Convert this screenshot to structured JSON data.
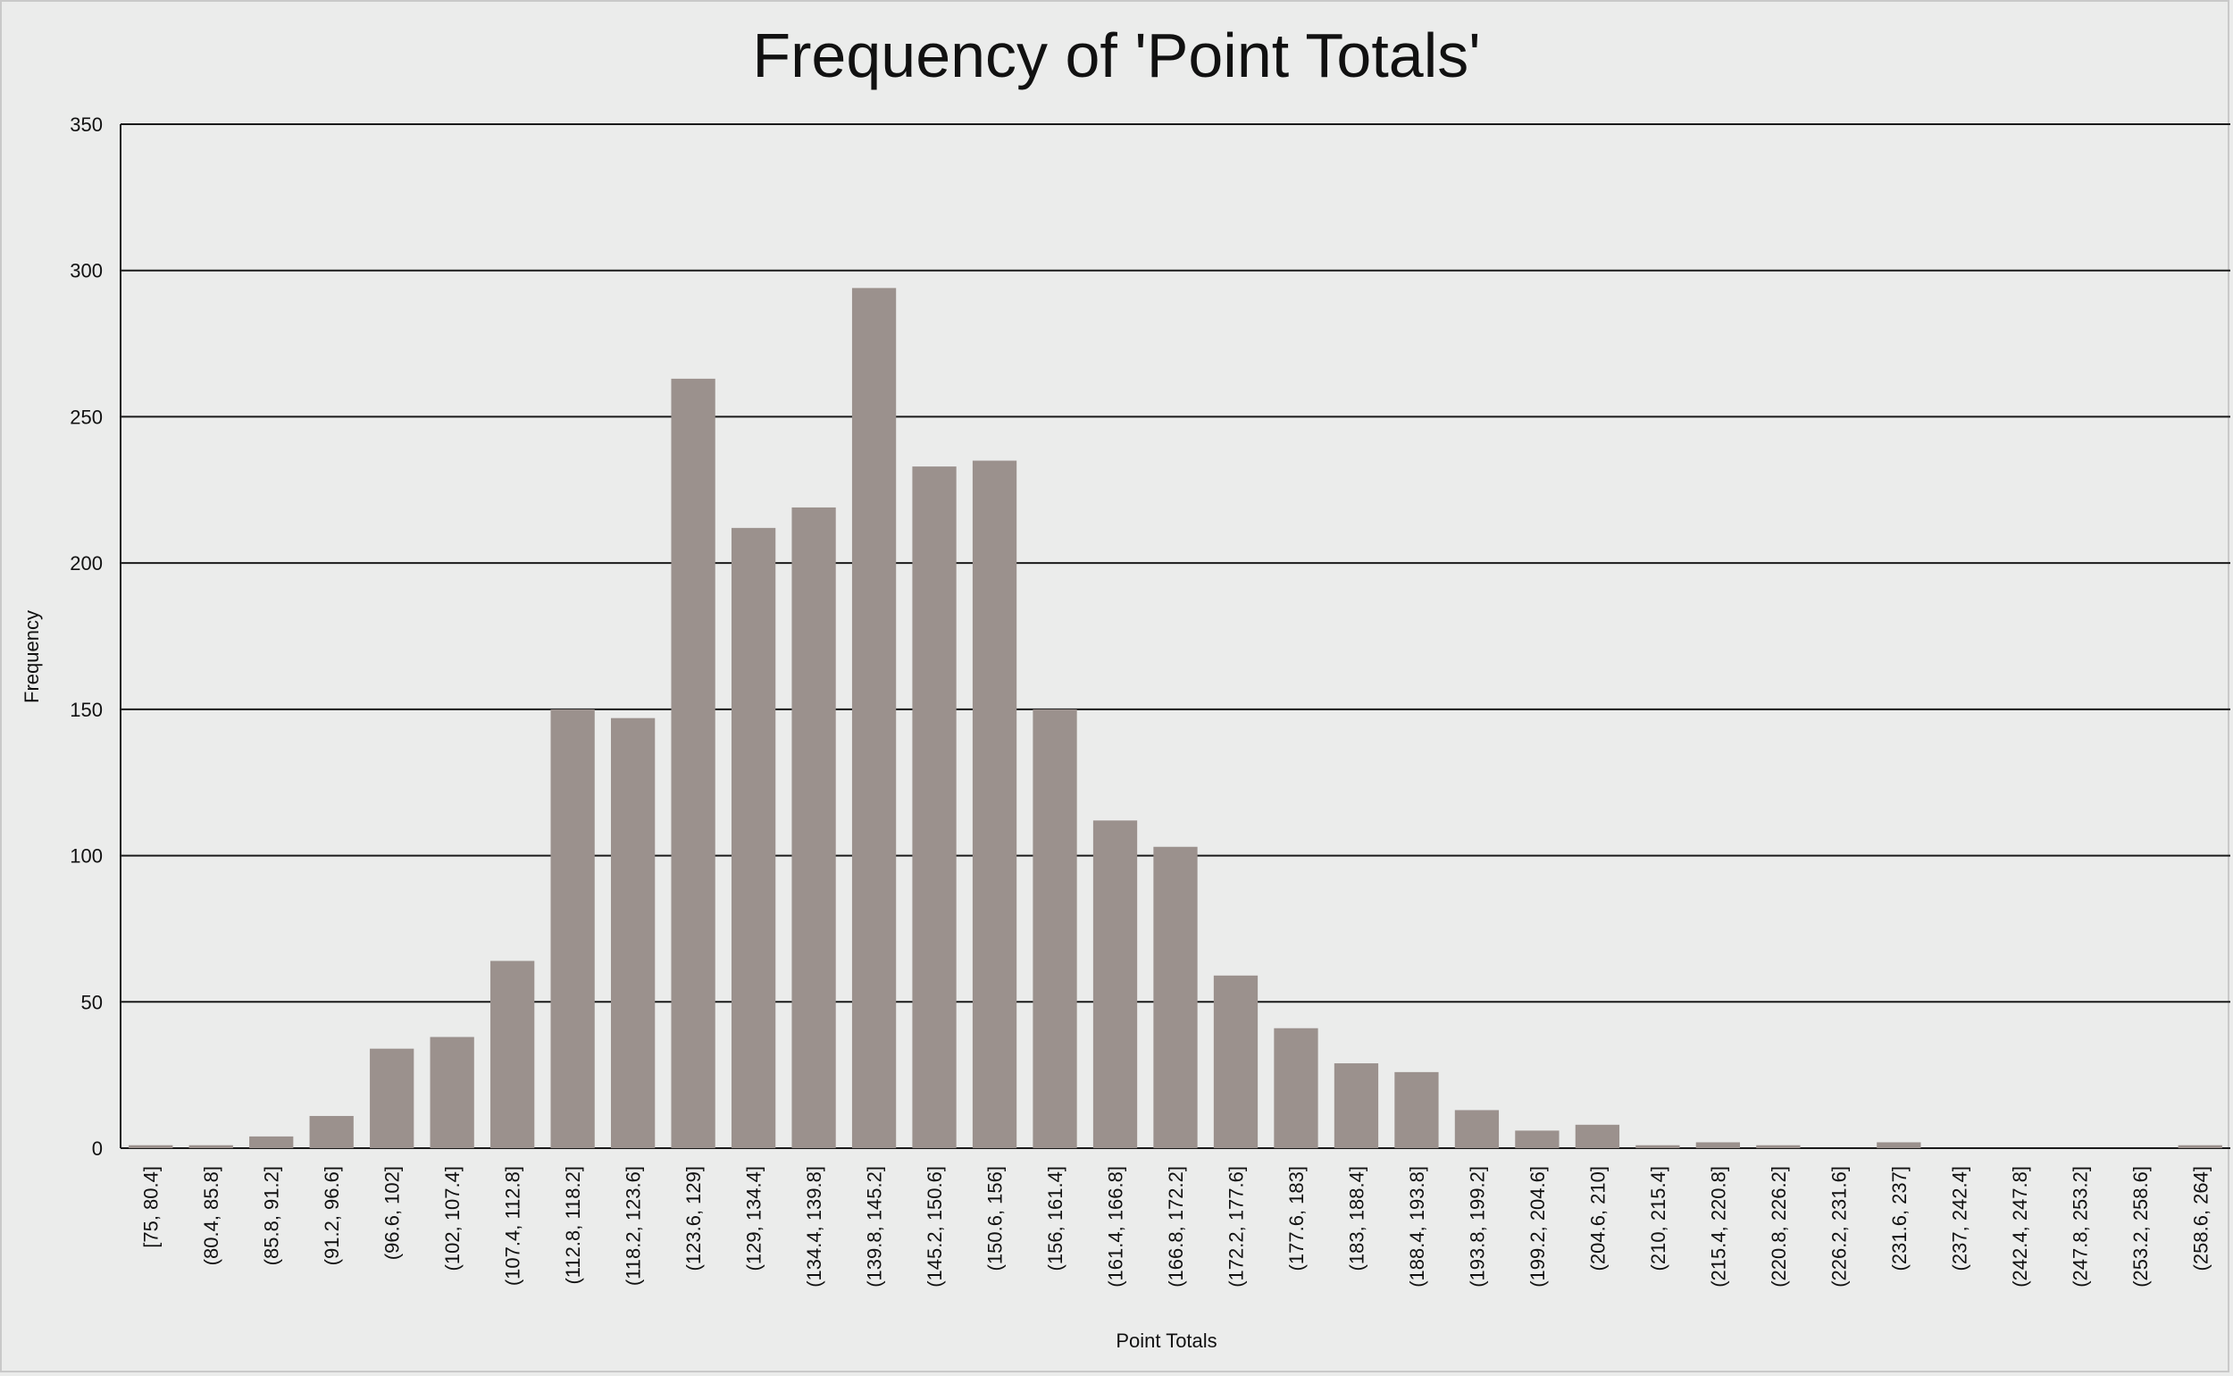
{
  "chart_data": {
    "type": "bar",
    "title": "Frequency of 'Point Totals'",
    "xlabel": "Point Totals",
    "ylabel": "Frequency",
    "ylim": [
      0,
      350
    ],
    "yticks": [
      0,
      50,
      100,
      150,
      200,
      250,
      300,
      350
    ],
    "grid": "horizontal",
    "bar_color": "#9b918d",
    "categories": [
      "[75, 80.4]",
      "(80.4, 85.8]",
      "(85.8, 91.2]",
      "(91.2, 96.6]",
      "(96.6, 102]",
      "(102, 107.4]",
      "(107.4, 112.8]",
      "(112.8, 118.2]",
      "(118.2, 123.6]",
      "(123.6, 129]",
      "(129, 134.4]",
      "(134.4, 139.8]",
      "(139.8, 145.2]",
      "(145.2, 150.6]",
      "(150.6, 156]",
      "(156, 161.4]",
      "(161.4, 166.8]",
      "(166.8, 172.2]",
      "(172.2, 177.6]",
      "(177.6, 183]",
      "(183, 188.4]",
      "(188.4, 193.8]",
      "(193.8, 199.2]",
      "(199.2, 204.6]",
      "(204.6, 210]",
      "(210, 215.4]",
      "(215.4, 220.8]",
      "(220.8, 226.2]",
      "(226.2, 231.6]",
      "(231.6, 237]",
      "(237, 242.4]",
      "(242.4, 247.8]",
      "(247.8, 253.2]",
      "(253.2, 258.6]",
      "(258.6, 264]"
    ],
    "values": [
      1,
      1,
      4,
      11,
      34,
      38,
      64,
      150,
      147,
      263,
      212,
      219,
      294,
      233,
      235,
      150,
      112,
      103,
      59,
      41,
      29,
      26,
      13,
      6,
      8,
      1,
      2,
      1,
      0,
      2,
      0,
      0,
      0,
      0,
      1
    ]
  }
}
